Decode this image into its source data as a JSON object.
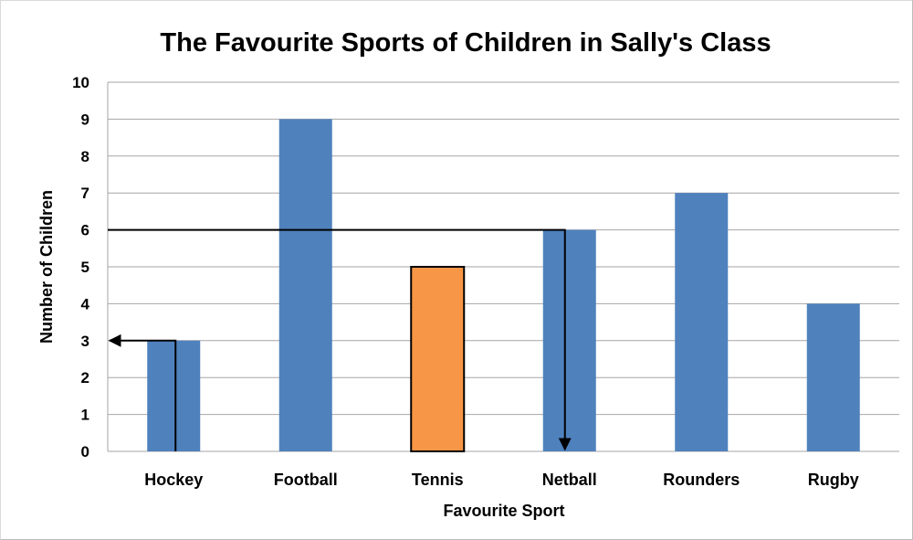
{
  "chart_data": {
    "type": "bar",
    "title": "The Favourite Sports of Children in Sally's Class",
    "xlabel": "Favourite Sport",
    "ylabel": "Number of Children",
    "categories": [
      "Hockey",
      "Football",
      "Tennis",
      "Netball",
      "Rounders",
      "Rugby"
    ],
    "values": [
      3,
      9,
      5,
      6,
      7,
      4
    ],
    "ylim": [
      0,
      10
    ],
    "yticks": [
      0,
      1,
      2,
      3,
      4,
      5,
      6,
      7,
      8,
      9,
      10
    ],
    "grid": true,
    "legend": "none",
    "colors": {
      "bar": "#4f81bd",
      "highlight": "#f79646",
      "highlight_outline": "#000000",
      "gridline": "#a6a6a6",
      "annotation": "#000000"
    },
    "highlighted_category": "Tennis",
    "annotations": [
      {
        "type": "arrow-path",
        "description_values": {
          "from_category": "Hockey",
          "from_value": 0,
          "to_value": 3,
          "direction": "up-then-left-to-axis"
        }
      },
      {
        "type": "arrow-path",
        "description_values": {
          "from_value": 6,
          "to_category": "Netball",
          "direction": "from-axis-right-then-down"
        }
      }
    ]
  }
}
